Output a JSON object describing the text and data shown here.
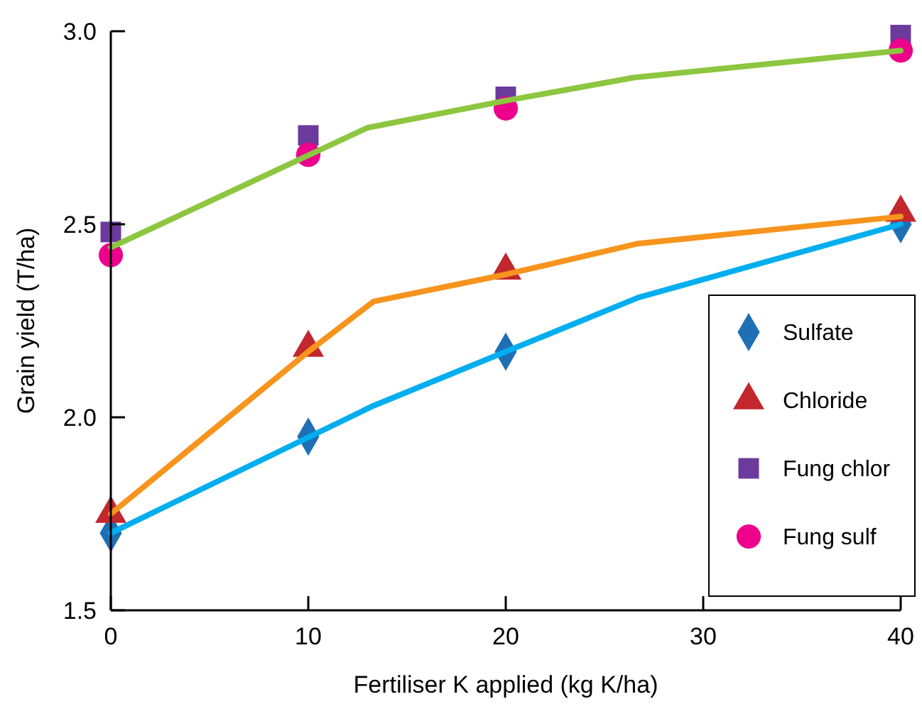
{
  "chart_data": {
    "type": "scatter",
    "xlabel": "Fertiliser K applied (kg K/ha)",
    "ylabel": "Grain yield (T/ha)",
    "xlim": [
      0,
      40
    ],
    "xticks": [
      0,
      10,
      20,
      30,
      40
    ],
    "ylim": [
      1.5,
      3.0
    ],
    "yticks": [
      {
        "value": 1.5,
        "label": "1.5"
      },
      {
        "value": 2.0,
        "label": "2.0"
      },
      {
        "value": 2.5,
        "label": "2.5"
      },
      {
        "value": 3.0,
        "label": "3.0"
      }
    ],
    "grid": false,
    "legend": "bottom right",
    "series": [
      {
        "type": "line",
        "color": "#8dc63f",
        "marker": "none",
        "x": [
          0,
          13,
          20,
          26.5,
          40
        ],
        "values": [
          2.44,
          2.75,
          2.82,
          2.88,
          2.95
        ]
      },
      {
        "type": "line",
        "color": "#f7941d",
        "marker": "none",
        "x": [
          0,
          10,
          13.3,
          20,
          26.7,
          40
        ],
        "values": [
          1.75,
          2.17,
          2.3,
          2.37,
          2.45,
          2.52
        ]
      },
      {
        "type": "line",
        "color": "#00aeef",
        "marker": "none",
        "x": [
          0,
          13.3,
          20,
          26.7,
          40
        ],
        "values": [
          1.7,
          2.03,
          2.17,
          2.31,
          2.5
        ]
      },
      {
        "name": "Sulfate",
        "color": "#1f6fb5",
        "marker": "diamond",
        "x": [
          0,
          10,
          20,
          40
        ],
        "values": [
          1.7,
          1.95,
          2.17,
          2.5
        ]
      },
      {
        "name": "Chloride",
        "color": "#c1272d",
        "marker": "triangle",
        "x": [
          0,
          10,
          20,
          40
        ],
        "values": [
          1.75,
          2.18,
          2.38,
          2.53
        ]
      },
      {
        "name": "Fung chlor",
        "color": "#6c3a9c",
        "marker": "square",
        "x": [
          0,
          10,
          20,
          40
        ],
        "values": [
          2.48,
          2.73,
          2.83,
          2.99
        ]
      },
      {
        "name": "Fung sulf",
        "color": "#ec008c",
        "marker": "circle",
        "x": [
          0,
          10,
          20,
          40
        ],
        "values": [
          2.42,
          2.68,
          2.8,
          2.95
        ]
      }
    ]
  }
}
